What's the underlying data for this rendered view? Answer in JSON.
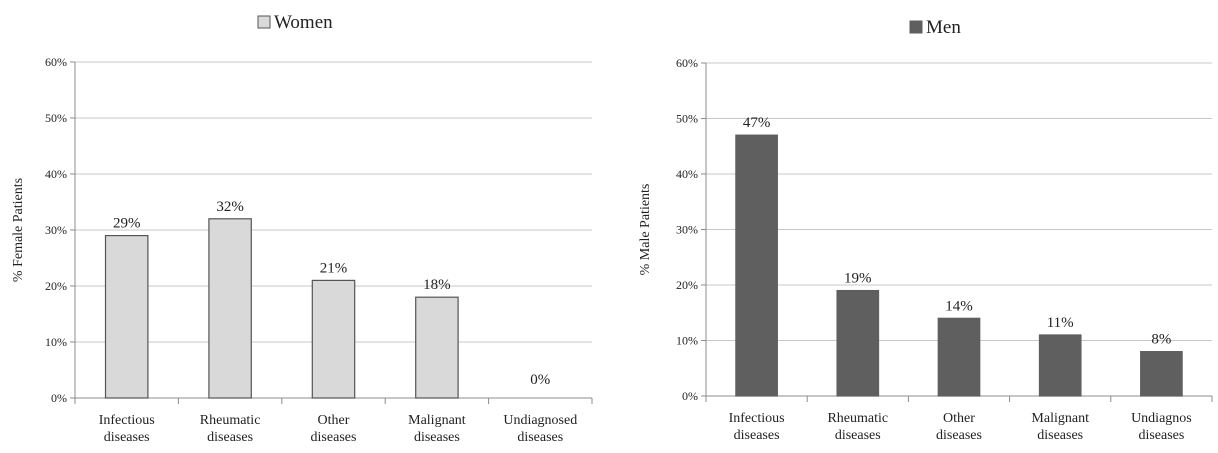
{
  "chart_data": [
    {
      "type": "bar",
      "legend": "Women",
      "ylabel": "% Female Patients",
      "categories": [
        [
          "Infectious",
          "diseases"
        ],
        [
          "Rheumatic",
          "diseases"
        ],
        [
          "Other",
          "diseases"
        ],
        [
          "Malignant",
          "diseases"
        ],
        [
          "Undiagnosed",
          "diseases"
        ]
      ],
      "values": [
        29,
        32,
        21,
        18,
        0
      ],
      "value_labels": [
        "29%",
        "32%",
        "21%",
        "18%",
        "0%"
      ],
      "y_ticks": [
        "0%",
        "10%",
        "20%",
        "30%",
        "40%",
        "50%",
        "60%"
      ],
      "ylim": [
        0,
        60
      ],
      "grid": true,
      "legend_position": "top",
      "bar_color": "#d9d9d9",
      "bar_stroke": "#555555"
    },
    {
      "type": "bar",
      "legend": "Men",
      "ylabel": "% Male Patients",
      "categories": [
        [
          "Infectious",
          "diseases"
        ],
        [
          "Rheumatic",
          "diseases"
        ],
        [
          "Other",
          "diseases"
        ],
        [
          "Malignant",
          "diseases"
        ],
        [
          "Undiagnos",
          "diseases"
        ]
      ],
      "values": [
        47,
        19,
        14,
        11,
        8
      ],
      "value_labels": [
        "47%",
        "19%",
        "14%",
        "11%",
        "8%"
      ],
      "y_ticks": [
        "0%",
        "10%",
        "20%",
        "30%",
        "40%",
        "50%",
        "60%"
      ],
      "ylim": [
        0,
        60
      ],
      "grid": true,
      "legend_position": "top",
      "bar_color": "#5f5f5f",
      "bar_stroke": "#5f5f5f"
    }
  ]
}
